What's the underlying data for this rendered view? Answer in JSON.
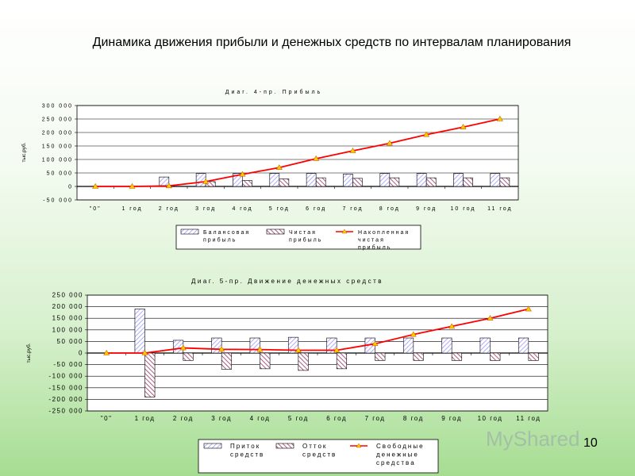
{
  "page_title": "Динамика движения  прибыли и денежных средств по интервалам планирования",
  "page_number": "10",
  "watermark_text": "MyShared",
  "colors": {
    "bar1": "#9999ff",
    "bar2": "#993366",
    "line": "#ff0000",
    "marker": "#ffcc00"
  },
  "chart_data": [
    {
      "type": "bar",
      "title": "Диаг. 4-пр. Прибыль",
      "ylabel": "тыс.руб.",
      "ylim": [
        -50000,
        300000
      ],
      "yticks": [
        "300 000",
        "250 000",
        "200 000",
        "150 000",
        "100 000",
        "50 000",
        "0",
        "-50 000"
      ],
      "grid": true,
      "legend_position": "bottom",
      "categories": [
        "\"0\"",
        "1 год",
        "2 год",
        "3 год",
        "4 год",
        "5 год",
        "6 год",
        "7 год",
        "8 год",
        "9 год",
        "10 год",
        "11 год"
      ],
      "series": [
        {
          "name": "Балансовая прибыль",
          "kind": "bar",
          "values": [
            0,
            0,
            35000,
            48000,
            48000,
            48000,
            48000,
            46000,
            48000,
            48000,
            48000,
            48000
          ]
        },
        {
          "name": "Чистая прибыль",
          "kind": "bar",
          "values": [
            0,
            0,
            0,
            18000,
            22000,
            28000,
            32000,
            30000,
            32000,
            32000,
            32000,
            32000
          ]
        },
        {
          "name": "Накопленная чистая прибыль",
          "kind": "line",
          "values": [
            0,
            0,
            2000,
            18000,
            45000,
            70000,
            103000,
            132000,
            160000,
            192000,
            220000,
            250000
          ]
        }
      ]
    },
    {
      "type": "bar",
      "title": "Диаг. 5-пр. Движение денежных средств",
      "ylabel": "тыс.руб.",
      "ylim": [
        -250000,
        250000
      ],
      "yticks": [
        "250 000",
        "200 000",
        "150 000",
        "100 000",
        "50 000",
        "0",
        "-50 000",
        "-100 000",
        "-150 000",
        "-200 000",
        "-250 000"
      ],
      "grid": true,
      "legend_position": "bottom",
      "categories": [
        "\"0\"",
        "1 год",
        "2 год",
        "3 год",
        "4 год",
        "5 год",
        "6 год",
        "7 год",
        "8 год",
        "9 год",
        "10 год",
        "11 год"
      ],
      "series": [
        {
          "name": "Приток средств",
          "kind": "bar",
          "values": [
            0,
            190000,
            55000,
            65000,
            65000,
            68000,
            65000,
            65000,
            65000,
            65000,
            65000,
            65000
          ]
        },
        {
          "name": "Отток средств",
          "kind": "bar",
          "values": [
            0,
            -190000,
            -32000,
            -70000,
            -68000,
            -75000,
            -68000,
            -32000,
            -32000,
            -32000,
            -32000,
            -32000
          ]
        },
        {
          "name": "Свободные денежные средства",
          "kind": "line",
          "values": [
            0,
            0,
            22000,
            16000,
            15000,
            12000,
            12000,
            40000,
            80000,
            115000,
            150000,
            190000
          ]
        }
      ]
    }
  ]
}
